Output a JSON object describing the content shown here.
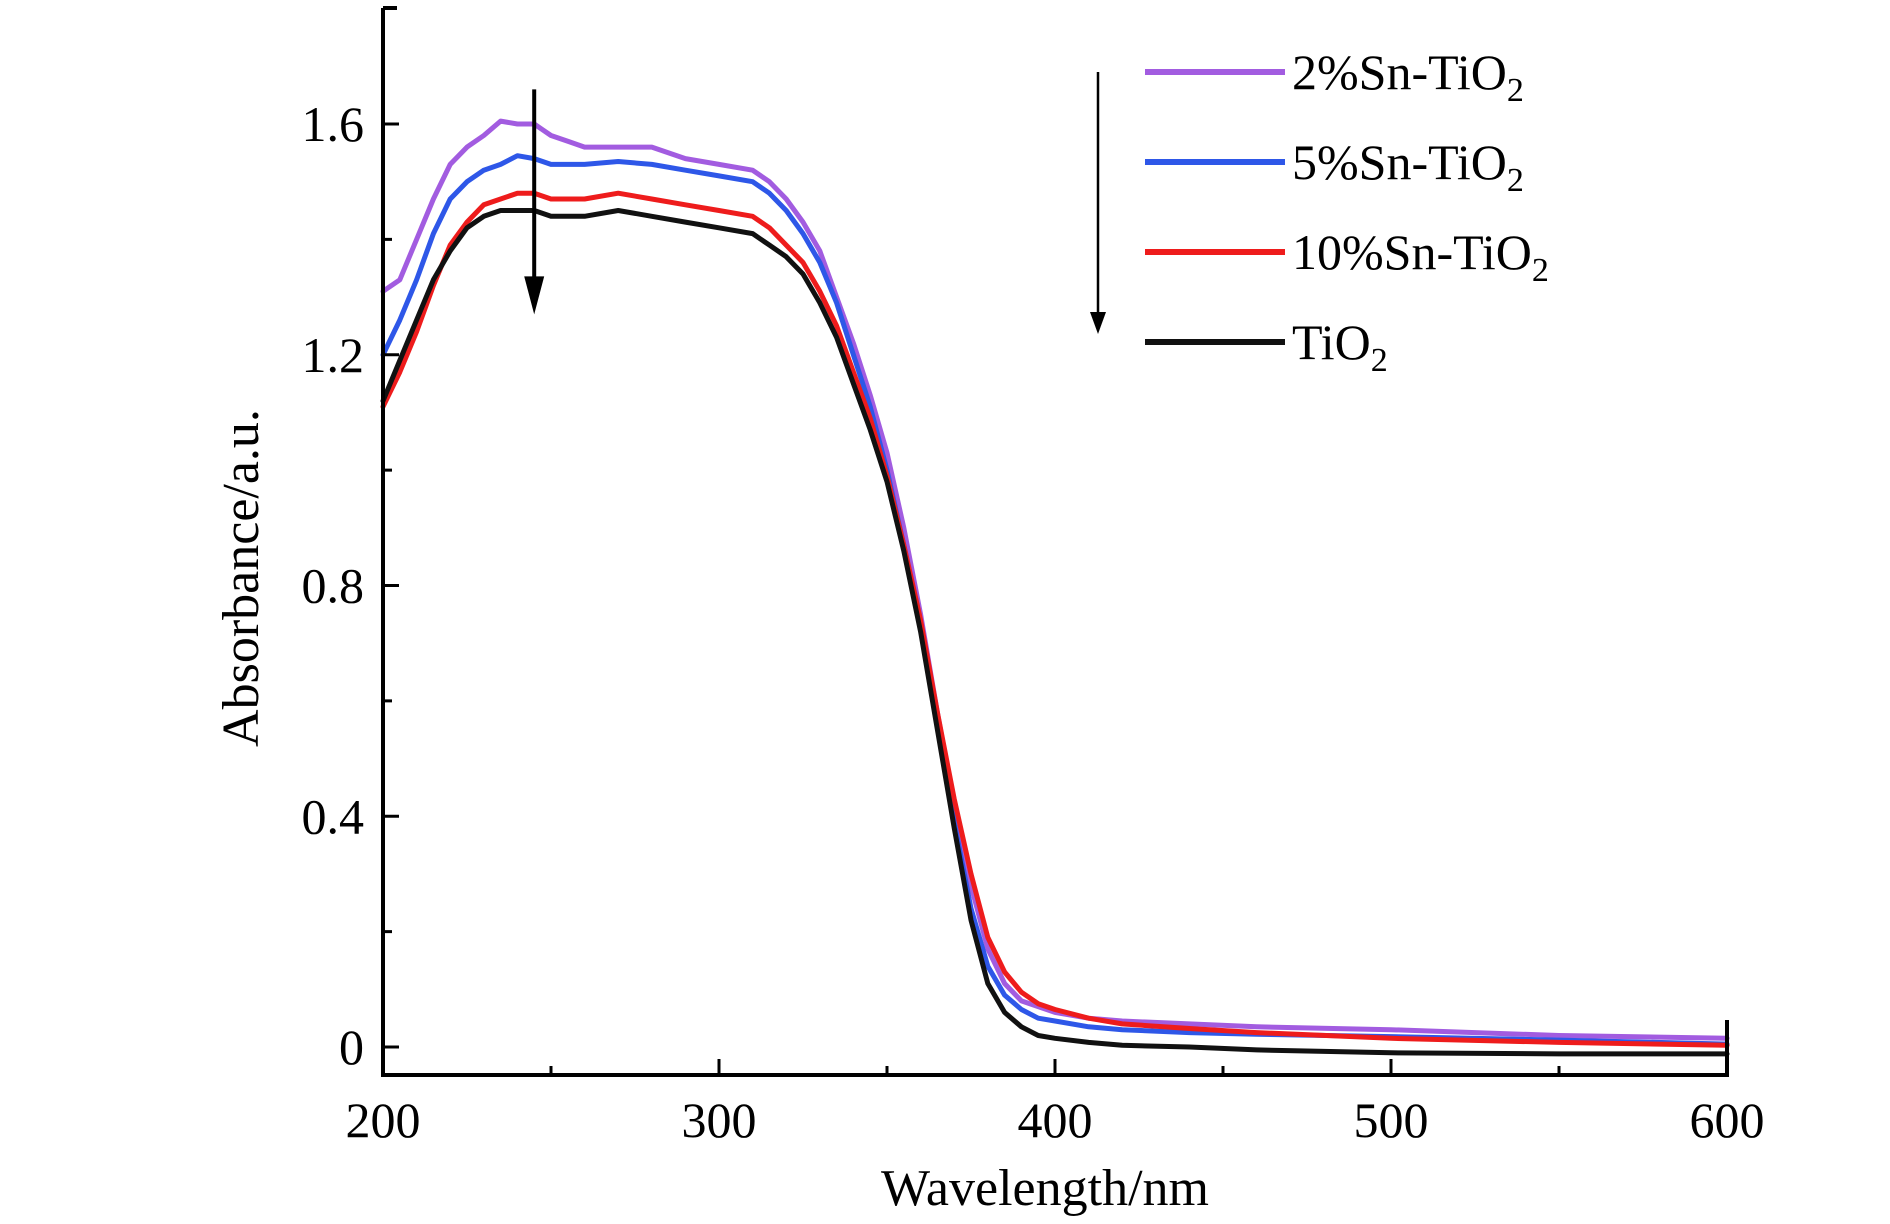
{
  "chart_data": {
    "type": "line",
    "xlabel": "Wavelength/nm",
    "ylabel": "Absorbance/a.u.",
    "xlim": [
      200,
      600
    ],
    "ylim": [
      -0.05,
      1.8
    ],
    "x_ticks": [
      {
        "value": 200,
        "label": "200"
      },
      {
        "value": 300,
        "label": "300"
      },
      {
        "value": 400,
        "label": "400"
      },
      {
        "value": 500,
        "label": "500"
      },
      {
        "value": 600,
        "label": "600"
      }
    ],
    "x_minor_ticks": [
      250,
      350,
      450,
      550
    ],
    "y_ticks": [
      {
        "value": 0,
        "label": "0"
      },
      {
        "value": 0.4,
        "label": "0.4"
      },
      {
        "value": 0.8,
        "label": "0.8"
      },
      {
        "value": 1.2,
        "label": "1.2"
      },
      {
        "value": 1.6,
        "label": "1.6"
      }
    ],
    "y_minor_ticks": [
      0.2,
      0.6,
      1.0,
      1.4
    ],
    "grid": false,
    "legend_position": "top-right",
    "annotations": [
      {
        "type": "arrow",
        "direction": "down",
        "x": 245,
        "y_from": 1.66,
        "y_to": 1.27
      },
      {
        "type": "arrow",
        "direction": "down",
        "location": "beside legend"
      }
    ],
    "series": [
      {
        "name": "2%Sn-TiO2",
        "label_main": "2%Sn-TiO",
        "label_sub": "2",
        "color": "#a25ce0",
        "points": [
          [
            200,
            1.31
          ],
          [
            205,
            1.33
          ],
          [
            210,
            1.4
          ],
          [
            215,
            1.47
          ],
          [
            220,
            1.53
          ],
          [
            225,
            1.56
          ],
          [
            230,
            1.58
          ],
          [
            235,
            1.605
          ],
          [
            240,
            1.6
          ],
          [
            245,
            1.6
          ],
          [
            250,
            1.58
          ],
          [
            255,
            1.57
          ],
          [
            260,
            1.56
          ],
          [
            270,
            1.56
          ],
          [
            280,
            1.56
          ],
          [
            290,
            1.54
          ],
          [
            300,
            1.53
          ],
          [
            310,
            1.52
          ],
          [
            315,
            1.5
          ],
          [
            320,
            1.47
          ],
          [
            325,
            1.43
          ],
          [
            330,
            1.38
          ],
          [
            335,
            1.3
          ],
          [
            340,
            1.22
          ],
          [
            345,
            1.13
          ],
          [
            350,
            1.03
          ],
          [
            355,
            0.9
          ],
          [
            360,
            0.75
          ],
          [
            365,
            0.58
          ],
          [
            370,
            0.42
          ],
          [
            375,
            0.28
          ],
          [
            380,
            0.17
          ],
          [
            385,
            0.11
          ],
          [
            390,
            0.08
          ],
          [
            395,
            0.07
          ],
          [
            400,
            0.06
          ],
          [
            410,
            0.05
          ],
          [
            420,
            0.045
          ],
          [
            440,
            0.04
          ],
          [
            460,
            0.035
          ],
          [
            500,
            0.03
          ],
          [
            550,
            0.02
          ],
          [
            600,
            0.015
          ]
        ]
      },
      {
        "name": "5%Sn-TiO2",
        "label_main": "5%Sn-TiO",
        "label_sub": "2",
        "color": "#2e57e8",
        "points": [
          [
            200,
            1.2
          ],
          [
            205,
            1.26
          ],
          [
            210,
            1.33
          ],
          [
            215,
            1.41
          ],
          [
            220,
            1.47
          ],
          [
            225,
            1.5
          ],
          [
            230,
            1.52
          ],
          [
            235,
            1.53
          ],
          [
            240,
            1.545
          ],
          [
            245,
            1.54
          ],
          [
            250,
            1.53
          ],
          [
            260,
            1.53
          ],
          [
            270,
            1.535
          ],
          [
            280,
            1.53
          ],
          [
            290,
            1.52
          ],
          [
            300,
            1.51
          ],
          [
            310,
            1.5
          ],
          [
            315,
            1.48
          ],
          [
            320,
            1.45
          ],
          [
            325,
            1.41
          ],
          [
            330,
            1.36
          ],
          [
            335,
            1.29
          ],
          [
            340,
            1.2
          ],
          [
            345,
            1.11
          ],
          [
            350,
            1.0
          ],
          [
            355,
            0.87
          ],
          [
            360,
            0.73
          ],
          [
            365,
            0.56
          ],
          [
            370,
            0.39
          ],
          [
            375,
            0.24
          ],
          [
            380,
            0.14
          ],
          [
            385,
            0.09
          ],
          [
            390,
            0.065
          ],
          [
            395,
            0.05
          ],
          [
            400,
            0.045
          ],
          [
            410,
            0.035
          ],
          [
            420,
            0.03
          ],
          [
            440,
            0.025
          ],
          [
            460,
            0.022
          ],
          [
            500,
            0.018
          ],
          [
            550,
            0.012
          ],
          [
            600,
            0.005
          ]
        ]
      },
      {
        "name": "10%Sn-TiO2",
        "label_main": "10%Sn-TiO",
        "label_sub": "2",
        "color": "#ee1c1c",
        "points": [
          [
            200,
            1.11
          ],
          [
            205,
            1.17
          ],
          [
            210,
            1.24
          ],
          [
            215,
            1.32
          ],
          [
            220,
            1.39
          ],
          [
            225,
            1.43
          ],
          [
            230,
            1.46
          ],
          [
            235,
            1.47
          ],
          [
            240,
            1.48
          ],
          [
            245,
            1.48
          ],
          [
            250,
            1.47
          ],
          [
            260,
            1.47
          ],
          [
            270,
            1.48
          ],
          [
            280,
            1.47
          ],
          [
            290,
            1.46
          ],
          [
            300,
            1.45
          ],
          [
            310,
            1.44
          ],
          [
            315,
            1.42
          ],
          [
            320,
            1.39
          ],
          [
            325,
            1.36
          ],
          [
            330,
            1.31
          ],
          [
            335,
            1.25
          ],
          [
            340,
            1.17
          ],
          [
            345,
            1.09
          ],
          [
            350,
            0.99
          ],
          [
            355,
            0.87
          ],
          [
            360,
            0.74
          ],
          [
            365,
            0.58
          ],
          [
            370,
            0.43
          ],
          [
            375,
            0.3
          ],
          [
            380,
            0.19
          ],
          [
            385,
            0.13
          ],
          [
            390,
            0.095
          ],
          [
            395,
            0.075
          ],
          [
            400,
            0.065
          ],
          [
            410,
            0.05
          ],
          [
            420,
            0.04
          ],
          [
            440,
            0.032
          ],
          [
            460,
            0.025
          ],
          [
            500,
            0.015
          ],
          [
            550,
            0.008
          ],
          [
            600,
            0.003
          ]
        ]
      },
      {
        "name": "TiO2",
        "label_main": "TiO",
        "label_sub": "2",
        "color": "#111111",
        "points": [
          [
            200,
            1.12
          ],
          [
            205,
            1.19
          ],
          [
            210,
            1.26
          ],
          [
            215,
            1.33
          ],
          [
            220,
            1.38
          ],
          [
            225,
            1.42
          ],
          [
            230,
            1.44
          ],
          [
            235,
            1.45
          ],
          [
            240,
            1.45
          ],
          [
            245,
            1.45
          ],
          [
            250,
            1.44
          ],
          [
            260,
            1.44
          ],
          [
            270,
            1.45
          ],
          [
            280,
            1.44
          ],
          [
            290,
            1.43
          ],
          [
            300,
            1.42
          ],
          [
            310,
            1.41
          ],
          [
            315,
            1.39
          ],
          [
            320,
            1.37
          ],
          [
            325,
            1.34
          ],
          [
            330,
            1.29
          ],
          [
            335,
            1.23
          ],
          [
            340,
            1.15
          ],
          [
            345,
            1.07
          ],
          [
            350,
            0.98
          ],
          [
            355,
            0.86
          ],
          [
            360,
            0.72
          ],
          [
            365,
            0.55
          ],
          [
            370,
            0.38
          ],
          [
            375,
            0.22
          ],
          [
            380,
            0.11
          ],
          [
            385,
            0.06
          ],
          [
            390,
            0.035
          ],
          [
            395,
            0.02
          ],
          [
            400,
            0.015
          ],
          [
            410,
            0.008
          ],
          [
            420,
            0.003
          ],
          [
            440,
            0.0
          ],
          [
            460,
            -0.005
          ],
          [
            500,
            -0.01
          ],
          [
            550,
            -0.012
          ],
          [
            600,
            -0.012
          ]
        ]
      }
    ]
  }
}
